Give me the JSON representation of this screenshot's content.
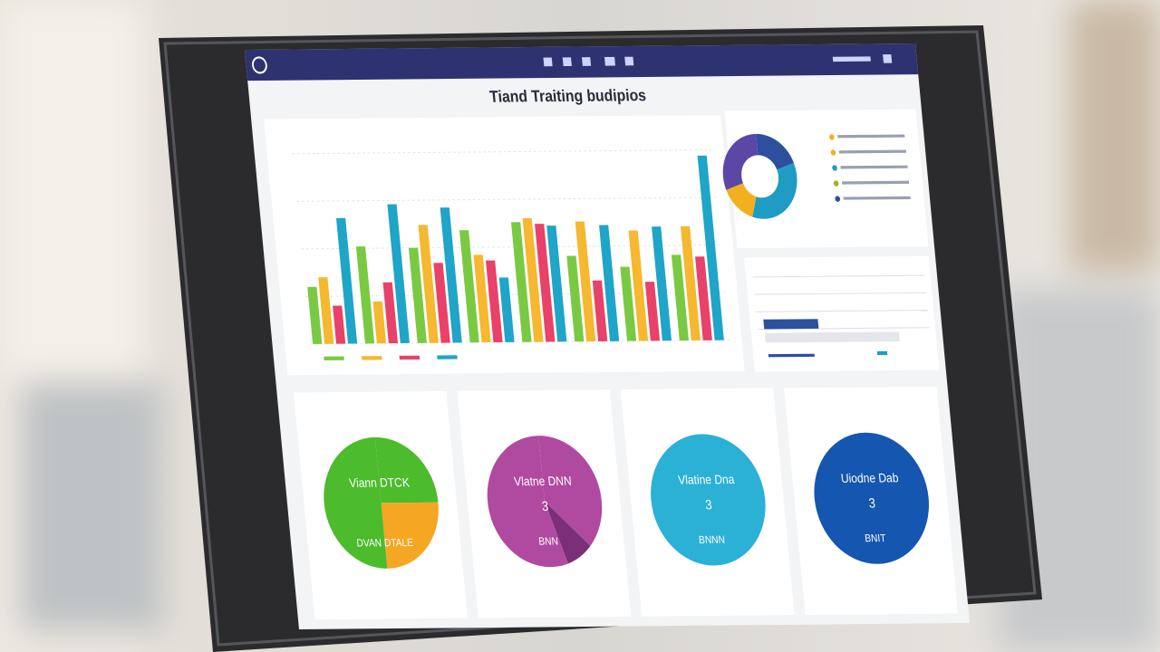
{
  "header": {
    "title": "Tiand Traiting budipios"
  },
  "chart_data": [
    {
      "type": "bar",
      "categories": [
        null,
        null,
        null,
        null,
        null,
        null,
        null,
        null
      ],
      "series": [
        {
          "color": "#7ac943",
          "values": [
            30,
            51,
            50,
            59,
            63,
            45,
            39,
            45
          ]
        },
        {
          "color": "#f5b82e",
          "values": [
            35,
            22,
            62,
            46,
            65,
            63,
            58,
            60
          ]
        },
        {
          "color": "#e8416a",
          "values": [
            20,
            32,
            42,
            43,
            62,
            32,
            31,
            44
          ]
        },
        {
          "color": "#1ea5c8",
          "values": [
            66,
            73,
            71,
            34,
            61,
            61,
            60,
            97
          ]
        }
      ],
      "ylim": [
        0,
        100
      ],
      "yticks": [
        0,
        25,
        50,
        75,
        100
      ],
      "grid": true
    },
    {
      "type": "pie",
      "donut": true,
      "values": [
        20,
        35,
        15,
        30
      ],
      "colors": [
        "#2c4f9e",
        "#1f9cc4",
        "#f2b01e",
        "#5a47a6"
      ]
    },
    {
      "type": "pie",
      "values": [
        25,
        25,
        50
      ],
      "colors": [
        "#4cbb2c",
        "#f5a623",
        "#4cbb2c"
      ]
    },
    {
      "type": "pie",
      "values": [
        37,
        8,
        55
      ],
      "colors": [
        "#b04aa0",
        "#7a2f78",
        "#b04aa0"
      ]
    }
  ],
  "cards": [
    {
      "title": "Viann DTCK",
      "footer": "DVAN DTALE"
    },
    {
      "title": "Vlatne DNN",
      "value": 3,
      "footer": "BNN"
    },
    {
      "title": "Vlatine Dna",
      "value": 3,
      "footer": "BNNN",
      "color": "#2bb0d6"
    },
    {
      "title": "Uiodne Dab",
      "value": 3,
      "footer": "BNIT",
      "color": "#1456b0"
    }
  ]
}
